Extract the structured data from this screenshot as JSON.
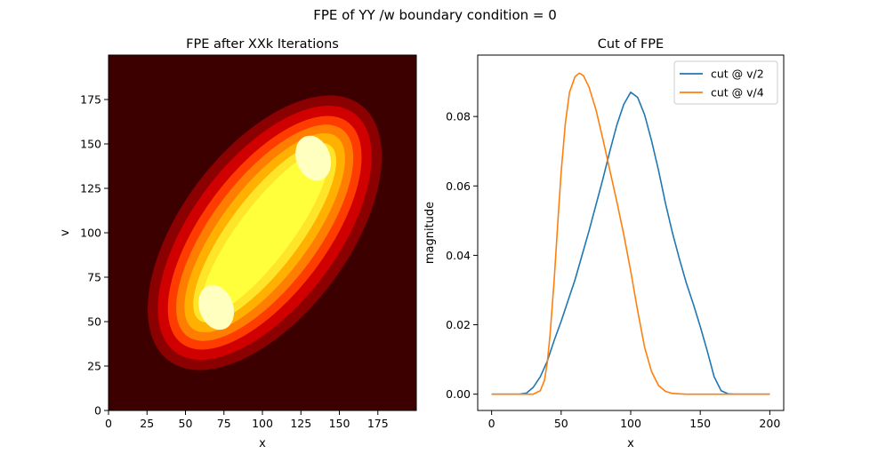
{
  "figure": {
    "suptitle": "FPE of YY /w boundary condition = 0"
  },
  "chart_data": [
    {
      "type": "heatmap",
      "title": "FPE after XXk Iterations",
      "xlabel": "x",
      "ylabel": "v",
      "xlim": [
        0,
        200
      ],
      "ylim": [
        0,
        200
      ],
      "x_ticks": [
        0,
        25,
        50,
        75,
        100,
        125,
        150,
        175
      ],
      "y_ticks": [
        0,
        25,
        50,
        75,
        100,
        125,
        150,
        175
      ],
      "colormap": "hot",
      "level_colors": [
        "#3d0000",
        "#8b0000",
        "#d10000",
        "#ff3c00",
        "#ff7d00",
        "#ffb000",
        "#ffe52a",
        "#ffff3c",
        "#ffffc0"
      ],
      "peaks": [
        {
          "x": 70,
          "v": 58,
          "level": "highest"
        },
        {
          "x": 133,
          "v": 142,
          "level": "highest"
        }
      ],
      "grid": false
    },
    {
      "type": "line",
      "title": "Cut of FPE",
      "xlabel": "x",
      "ylabel": "magnitude",
      "xlim": [
        -10,
        210
      ],
      "ylim": [
        -0.0047,
        0.0977
      ],
      "x_ticks": [
        0,
        50,
        100,
        150,
        200
      ],
      "y_ticks": [
        0.0,
        0.02,
        0.04,
        0.06,
        0.08
      ],
      "y_tick_labels": [
        "0.00",
        "0.02",
        "0.04",
        "0.06",
        "0.08"
      ],
      "legend_position": "top-right",
      "grid": false,
      "series": [
        {
          "name": "cut @ v/2",
          "color": "#1f77b4",
          "x": [
            0,
            20,
            25,
            30,
            35,
            40,
            45,
            50,
            55,
            60,
            65,
            70,
            75,
            80,
            85,
            90,
            95,
            100,
            105,
            110,
            115,
            120,
            125,
            130,
            135,
            140,
            145,
            150,
            155,
            160,
            165,
            170,
            175,
            180,
            200
          ],
          "y": [
            0.0,
            0.0,
            0.0003,
            0.002,
            0.005,
            0.0095,
            0.0155,
            0.021,
            0.027,
            0.033,
            0.04,
            0.047,
            0.0545,
            0.062,
            0.07,
            0.0775,
            0.0835,
            0.087,
            0.0855,
            0.0805,
            0.073,
            0.0645,
            0.055,
            0.0465,
            0.039,
            0.032,
            0.026,
            0.0195,
            0.0125,
            0.005,
            0.001,
            0.0001,
            0.0,
            0.0,
            0.0
          ]
        },
        {
          "name": "cut @ v/4",
          "color": "#ff7f0e",
          "x": [
            0,
            30,
            35,
            38,
            40,
            42,
            45,
            48,
            50,
            53,
            56,
            60,
            63,
            66,
            70,
            75,
            80,
            85,
            90,
            95,
            100,
            105,
            110,
            115,
            120,
            125,
            130,
            140,
            150,
            200
          ],
          "y": [
            0.0,
            0.0,
            0.001,
            0.004,
            0.009,
            0.017,
            0.033,
            0.052,
            0.064,
            0.078,
            0.087,
            0.0915,
            0.0925,
            0.0918,
            0.0885,
            0.082,
            0.0735,
            0.0645,
            0.0555,
            0.046,
            0.0355,
            0.024,
            0.0135,
            0.0065,
            0.0025,
            0.0008,
            0.0002,
            0.0,
            0.0,
            0.0
          ]
        }
      ]
    }
  ]
}
